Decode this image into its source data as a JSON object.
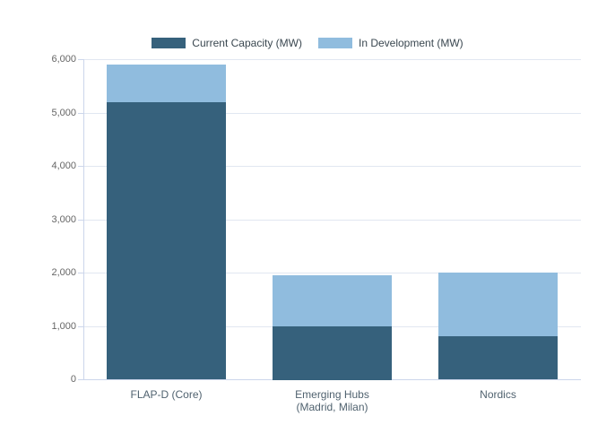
{
  "chart_data": {
    "type": "bar",
    "stacked": true,
    "title": "",
    "categories": [
      "FLAP-D (Core)",
      "Emerging Hubs\n(Madrid, Milan)",
      "Nordics"
    ],
    "series": [
      {
        "name": "Current Capacity (MW)",
        "color": "#36617c",
        "values": [
          5200,
          1000,
          800
        ]
      },
      {
        "name": "In Development (MW)",
        "color": "#90bcde",
        "values": [
          700,
          950,
          1200
        ]
      }
    ],
    "stack_totals": [
      5900,
      1950,
      2000
    ],
    "xlabel": "",
    "ylabel": "",
    "ylim": [
      0,
      6000
    ],
    "ytick_values": [
      0,
      1000,
      2000,
      3000,
      4000,
      5000,
      6000
    ],
    "ytick_labels": [
      "0",
      "1,000",
      "2,000",
      "3,000",
      "4,000",
      "5,000",
      "6,000"
    ],
    "grid": true,
    "legend_position": "top",
    "colors": {
      "background": "#ffffff",
      "gridline": "#e1e7f1",
      "axis_line": "#ccd6eb",
      "ytick_text": "#666666",
      "xtick_text": "#50626f",
      "legend_text": "#3a4750"
    }
  }
}
